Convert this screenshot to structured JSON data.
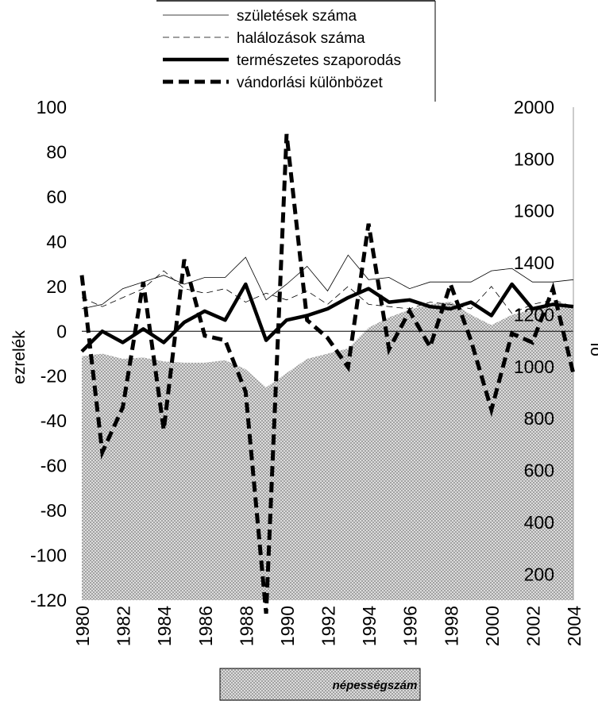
{
  "chart_data": {
    "type": "line",
    "x": [
      1980,
      1981,
      1982,
      1983,
      1984,
      1985,
      1986,
      1987,
      1988,
      1989,
      1990,
      1991,
      1992,
      1993,
      1994,
      1995,
      1996,
      1997,
      1998,
      1999,
      2000,
      2001,
      2002,
      2003,
      2004
    ],
    "x_tick_labels": [
      "1980",
      "1982",
      "1984",
      "1986",
      "1988",
      "1990",
      "1992",
      "1994",
      "1996",
      "1998",
      "2000",
      "2002",
      "2004"
    ],
    "series": [
      {
        "name": "születések száma",
        "axis": "left",
        "style": "thin-solid",
        "values": [
          10,
          12,
          19,
          22,
          25,
          21,
          24,
          24,
          33,
          14,
          21,
          29,
          18,
          34,
          23,
          24,
          19,
          22,
          22,
          22,
          27,
          28,
          22,
          22,
          23
        ]
      },
      {
        "name": "halálozások száma",
        "axis": "left",
        "style": "thin-dashed",
        "values": [
          15,
          11,
          15,
          19,
          27,
          19,
          17,
          19,
          13,
          17,
          14,
          18,
          12,
          20,
          12,
          11,
          10,
          13,
          12,
          10,
          20,
          8,
          12,
          14,
          11
        ]
      },
      {
        "name": "természetes szaporodás",
        "axis": "left",
        "style": "thick-solid",
        "values": [
          -9,
          0,
          -5,
          1,
          -5,
          4,
          9,
          5,
          21,
          -4,
          5,
          7,
          10,
          15,
          19,
          13,
          14,
          11,
          10,
          13,
          7,
          21,
          10,
          12,
          11
        ]
      },
      {
        "name": "vándorlási különbözet",
        "axis": "left",
        "style": "thick-dashed",
        "values": [
          25,
          -54,
          -34,
          22,
          -44,
          32,
          -2,
          -4,
          -27,
          -126,
          88,
          5,
          -3,
          -16,
          48,
          -8,
          9,
          -7,
          21,
          -4,
          -35,
          -1,
          -5,
          19,
          -19
        ]
      }
    ],
    "area": {
      "name": "népességszám",
      "axis": "right",
      "values": [
        1040,
        1050,
        1030,
        1035,
        1020,
        1015,
        1015,
        1025,
        990,
        920,
        975,
        1030,
        1050,
        1070,
        1150,
        1190,
        1220,
        1240,
        1250,
        1200,
        1160,
        1200,
        1220,
        1230,
        1240
      ]
    },
    "ylabel_left": "ezrelék",
    "ylabel_right": "fő",
    "ylim_left": [
      -120,
      100
    ],
    "ylim_right": [
      100,
      2000
    ],
    "yticks_left": [
      "100",
      "80",
      "60",
      "40",
      "20",
      "0",
      "-20",
      "-40",
      "-60",
      "-80",
      "-100",
      "-120"
    ],
    "yticks_right": [
      "2000",
      "1800",
      "1600",
      "1400",
      "1200",
      "1000",
      "800",
      "600",
      "400",
      "200"
    ],
    "legend_position": "top-center",
    "grid": false
  }
}
